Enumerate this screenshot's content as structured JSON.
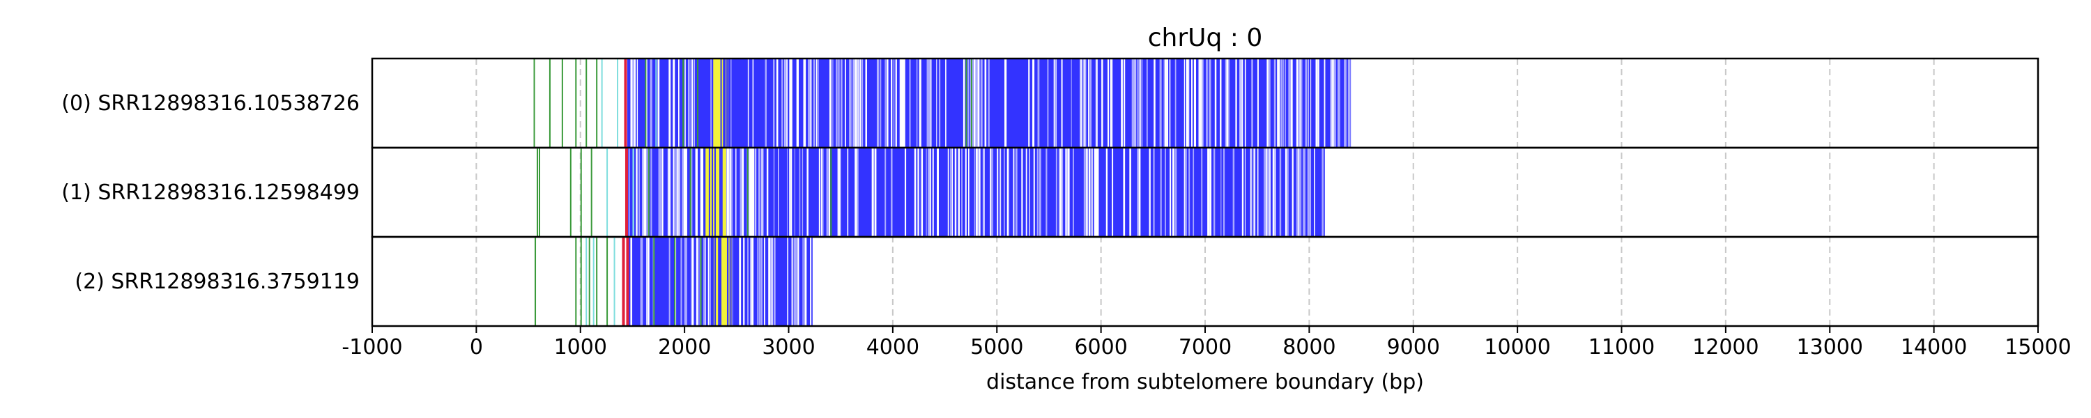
{
  "chart_data": {
    "type": "read-track",
    "title": "chrUq : 0",
    "xlabel": "distance from subtelomere boundary (bp)",
    "xlim": [
      -1000,
      15000
    ],
    "xticks": [
      -1000,
      0,
      1000,
      2000,
      3000,
      4000,
      5000,
      6000,
      7000,
      8000,
      9000,
      10000,
      11000,
      12000,
      13000,
      14000,
      15000
    ],
    "xtick_labels": [
      "-1000",
      "0",
      "1000",
      "2000",
      "3000",
      "4000",
      "5000",
      "6000",
      "7000",
      "8000",
      "9000",
      "10000",
      "11000",
      "12000",
      "13000",
      "14000",
      "15000"
    ],
    "grid": "vertical dashed",
    "colors": {
      "telomere_repeat": "#3333ff",
      "light_repeat": "#aaaaff",
      "yellow_block": "#f2f23a",
      "red_mark": "#e0203a",
      "green_mark": "#3a9a3a",
      "cyan_mark": "#7fdede",
      "grid": "#c8c8c8"
    },
    "reads": [
      {
        "label": "(0) SRR12898316.10538726",
        "end": 8400,
        "dense_start": 1450,
        "yellow": [
          2260,
          2420
        ],
        "red": [
          1420
        ],
        "green": [
          550,
          700,
          820,
          950,
          1050,
          1150,
          1620,
          1980,
          2120,
          4700,
          4750
        ],
        "cyan": [
          1200,
          1350,
          1720
        ]
      },
      {
        "label": "(1) SRR12898316.12598499",
        "end": 8150,
        "dense_start": 1450,
        "yellow": [
          2180,
          2400
        ],
        "red": [
          1430
        ],
        "green": [
          580,
          600,
          900,
          1000,
          1100,
          1650,
          2050,
          2600,
          3400
        ],
        "cyan": [
          1250,
          1500
        ]
      },
      {
        "label": "(2) SRR12898316.3759119",
        "end": 3230,
        "dense_start": 1450,
        "yellow": [
          2280,
          2450
        ],
        "red": [
          1400,
          1440
        ],
        "green": [
          560,
          950,
          1000,
          1080,
          1150,
          1250,
          1700,
          1900,
          2150
        ],
        "cyan": [
          1050,
          1120,
          1320
        ]
      }
    ]
  }
}
